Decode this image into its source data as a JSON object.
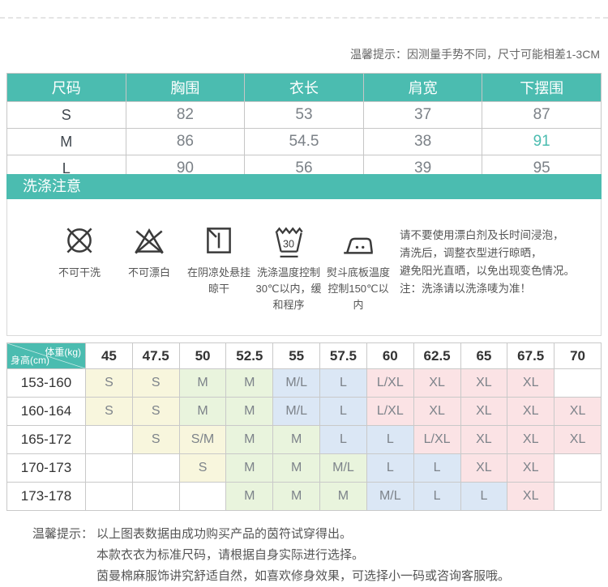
{
  "colors": {
    "teal": "#4bbcb0",
    "cell_yellow": "#f8f6dd",
    "cell_green": "#e9f4dd",
    "cell_blue": "#dbe7f5",
    "cell_pink": "#fbe3e5"
  },
  "top_tip": "温馨提示：因测量手势不同，尺寸可能相差1-3CM",
  "size_table": {
    "headers": [
      "尺码",
      "胸围",
      "衣长",
      "肩宽",
      "下摆围"
    ],
    "rows": [
      {
        "size": "S",
        "values": [
          "82",
          "53",
          "37",
          "87"
        ],
        "highlight_col": -1
      },
      {
        "size": "M",
        "values": [
          "86",
          "54.5",
          "38",
          "91"
        ],
        "highlight_col": 3
      },
      {
        "size": "L",
        "values": [
          "90",
          "56",
          "39",
          "95"
        ],
        "highlight_col": -1
      }
    ]
  },
  "wash": {
    "banner": "洗涤注意",
    "icons": [
      {
        "name": "no-dry-clean-icon",
        "label": "不可干洗"
      },
      {
        "name": "no-bleach-icon",
        "label": "不可漂白"
      },
      {
        "name": "shade-hang-dry-icon",
        "label": "在阴凉处悬挂晾干"
      },
      {
        "name": "wash-30c-gentle-icon",
        "label": "洗涤温度控制30℃以内，缓和程序"
      },
      {
        "name": "iron-150c-max-icon",
        "label": "熨斗底板温度控制150℃以内"
      }
    ],
    "note_lines": [
      "请不要使用漂白剂及长时间浸泡，",
      "清洗后，调整衣型进行晾晒，",
      "避免阳光直晒，以免出现变色情况。",
      "注：洗涤请以洗涤唛为准！"
    ]
  },
  "matrix": {
    "corner_top": "体重(kg)",
    "corner_bottom": "身高(cm)",
    "weights": [
      "45",
      "47.5",
      "50",
      "52.5",
      "55",
      "57.5",
      "60",
      "62.5",
      "65",
      "67.5",
      "70"
    ],
    "rows": [
      {
        "height": "153-160",
        "cells": [
          {
            "v": "S",
            "c": "yellow"
          },
          {
            "v": "S",
            "c": "yellow"
          },
          {
            "v": "M",
            "c": "green"
          },
          {
            "v": "M",
            "c": "green"
          },
          {
            "v": "M/L",
            "c": "blue"
          },
          {
            "v": "L",
            "c": "blue"
          },
          {
            "v": "L/XL",
            "c": "pink"
          },
          {
            "v": "XL",
            "c": "pink"
          },
          {
            "v": "XL",
            "c": "pink"
          },
          {
            "v": "XL",
            "c": "pink"
          },
          {
            "v": "",
            "c": ""
          }
        ]
      },
      {
        "height": "160-164",
        "cells": [
          {
            "v": "S",
            "c": "yellow"
          },
          {
            "v": "S",
            "c": "yellow"
          },
          {
            "v": "M",
            "c": "green"
          },
          {
            "v": "M",
            "c": "green"
          },
          {
            "v": "M/L",
            "c": "blue"
          },
          {
            "v": "L",
            "c": "blue"
          },
          {
            "v": "L/XL",
            "c": "pink"
          },
          {
            "v": "XL",
            "c": "pink"
          },
          {
            "v": "XL",
            "c": "pink"
          },
          {
            "v": "XL",
            "c": "pink"
          },
          {
            "v": "XL",
            "c": "pink"
          }
        ]
      },
      {
        "height": "165-172",
        "cells": [
          {
            "v": "",
            "c": ""
          },
          {
            "v": "S",
            "c": "yellow"
          },
          {
            "v": "S/M",
            "c": "yellow"
          },
          {
            "v": "M",
            "c": "green"
          },
          {
            "v": "M",
            "c": "green"
          },
          {
            "v": "L",
            "c": "blue"
          },
          {
            "v": "L",
            "c": "blue"
          },
          {
            "v": "L/XL",
            "c": "pink"
          },
          {
            "v": "XL",
            "c": "pink"
          },
          {
            "v": "XL",
            "c": "pink"
          },
          {
            "v": "XL",
            "c": "pink"
          }
        ]
      },
      {
        "height": "170-173",
        "cells": [
          {
            "v": "",
            "c": ""
          },
          {
            "v": "",
            "c": ""
          },
          {
            "v": "S",
            "c": "yellow"
          },
          {
            "v": "M",
            "c": "green"
          },
          {
            "v": "M",
            "c": "green"
          },
          {
            "v": "M/L",
            "c": "green"
          },
          {
            "v": "L",
            "c": "blue"
          },
          {
            "v": "L",
            "c": "blue"
          },
          {
            "v": "XL",
            "c": "pink"
          },
          {
            "v": "XL",
            "c": "pink"
          },
          {
            "v": "",
            "c": ""
          }
        ]
      },
      {
        "height": "173-178",
        "cells": [
          {
            "v": "",
            "c": ""
          },
          {
            "v": "",
            "c": ""
          },
          {
            "v": "",
            "c": ""
          },
          {
            "v": "M",
            "c": "green"
          },
          {
            "v": "M",
            "c": "green"
          },
          {
            "v": "M",
            "c": "green"
          },
          {
            "v": "M/L",
            "c": "blue"
          },
          {
            "v": "L",
            "c": "blue"
          },
          {
            "v": "L",
            "c": "blue"
          },
          {
            "v": "XL",
            "c": "pink"
          },
          {
            "v": "",
            "c": ""
          }
        ]
      }
    ]
  },
  "bottom": {
    "label": "温馨提示：",
    "lines": [
      "以上图表数据由成功购买产品的茵符试穿得出。",
      "本款衣衣为标准尺码，请根据自身实际进行选择。",
      "茵曼棉麻服饰讲究舒适自然，如喜欢修身效果，可选择小一码或咨询客服哦。"
    ]
  }
}
